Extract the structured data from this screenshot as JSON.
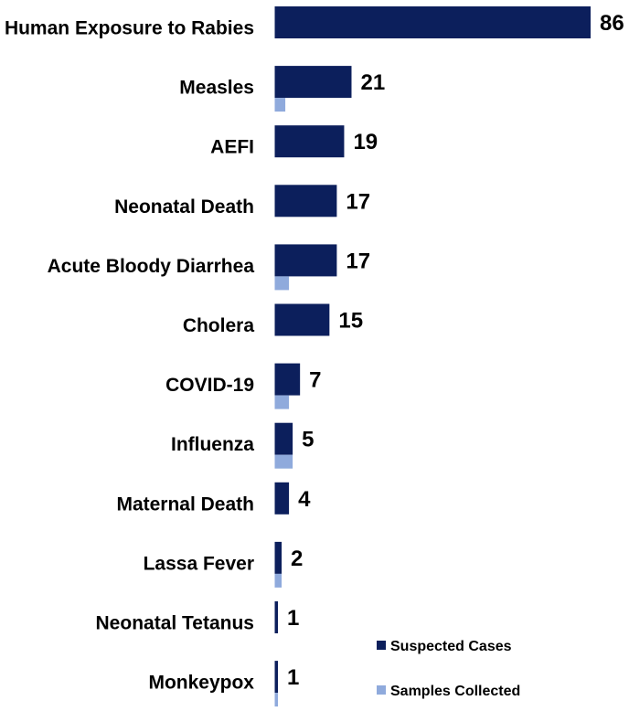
{
  "chart_data": {
    "type": "bar",
    "orientation": "horizontal",
    "title": "",
    "xlabel": "",
    "ylabel": "",
    "categories": [
      "Human Exposure to Rabies",
      "Measles",
      "AEFI",
      "Neonatal Death",
      "Acute Bloody Diarrhea",
      "Cholera",
      "COVID-19",
      "Influenza",
      "Maternal Death",
      "Lassa Fever",
      "Neonatal Tetanus",
      "Monkeypox"
    ],
    "series": [
      {
        "name": "Suspected Cases",
        "color": "#0c1f5c",
        "values": [
          86,
          21,
          19,
          17,
          17,
          15,
          7,
          5,
          4,
          2,
          1,
          1
        ],
        "data_labels": true
      },
      {
        "name": "Samples Collected",
        "color": "#8faadc",
        "values": [
          0,
          3,
          0,
          0,
          4,
          0,
          4,
          5,
          0,
          2,
          0,
          1
        ],
        "data_labels": false
      }
    ],
    "xlim": [
      0,
      86
    ],
    "grid": false,
    "legend": {
      "position": "bottom-right"
    }
  }
}
